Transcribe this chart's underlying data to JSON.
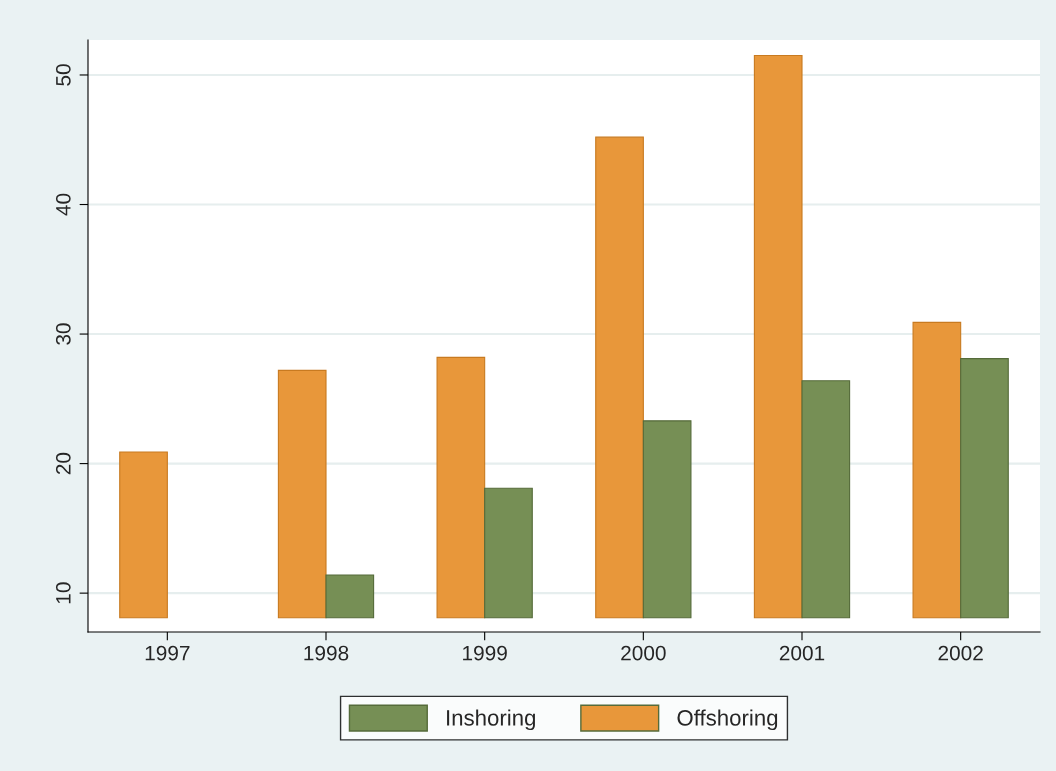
{
  "chart_data": {
    "type": "bar",
    "categories": [
      "1997",
      "1998",
      "1999",
      "2000",
      "2001",
      "2002"
    ],
    "series": [
      {
        "name": "Offshoring",
        "color": "#e8973a",
        "values": [
          12.8,
          19.1,
          20.1,
          37.1,
          43.4,
          22.8
        ],
        "base": [
          8.1,
          8.1,
          8.1,
          8.1,
          8.1,
          8.1
        ]
      },
      {
        "name": "Inshoring",
        "color": "#768f55",
        "values": [
          null,
          3.3,
          10.0,
          15.2,
          18.3,
          20.0
        ],
        "base": [
          null,
          8.1,
          8.1,
          8.1,
          8.1,
          8.1
        ]
      }
    ],
    "ylim": [
      7,
      52.7
    ],
    "yticks": [
      10,
      20,
      30,
      40,
      50
    ],
    "grid": "y",
    "legend": "bottom"
  }
}
